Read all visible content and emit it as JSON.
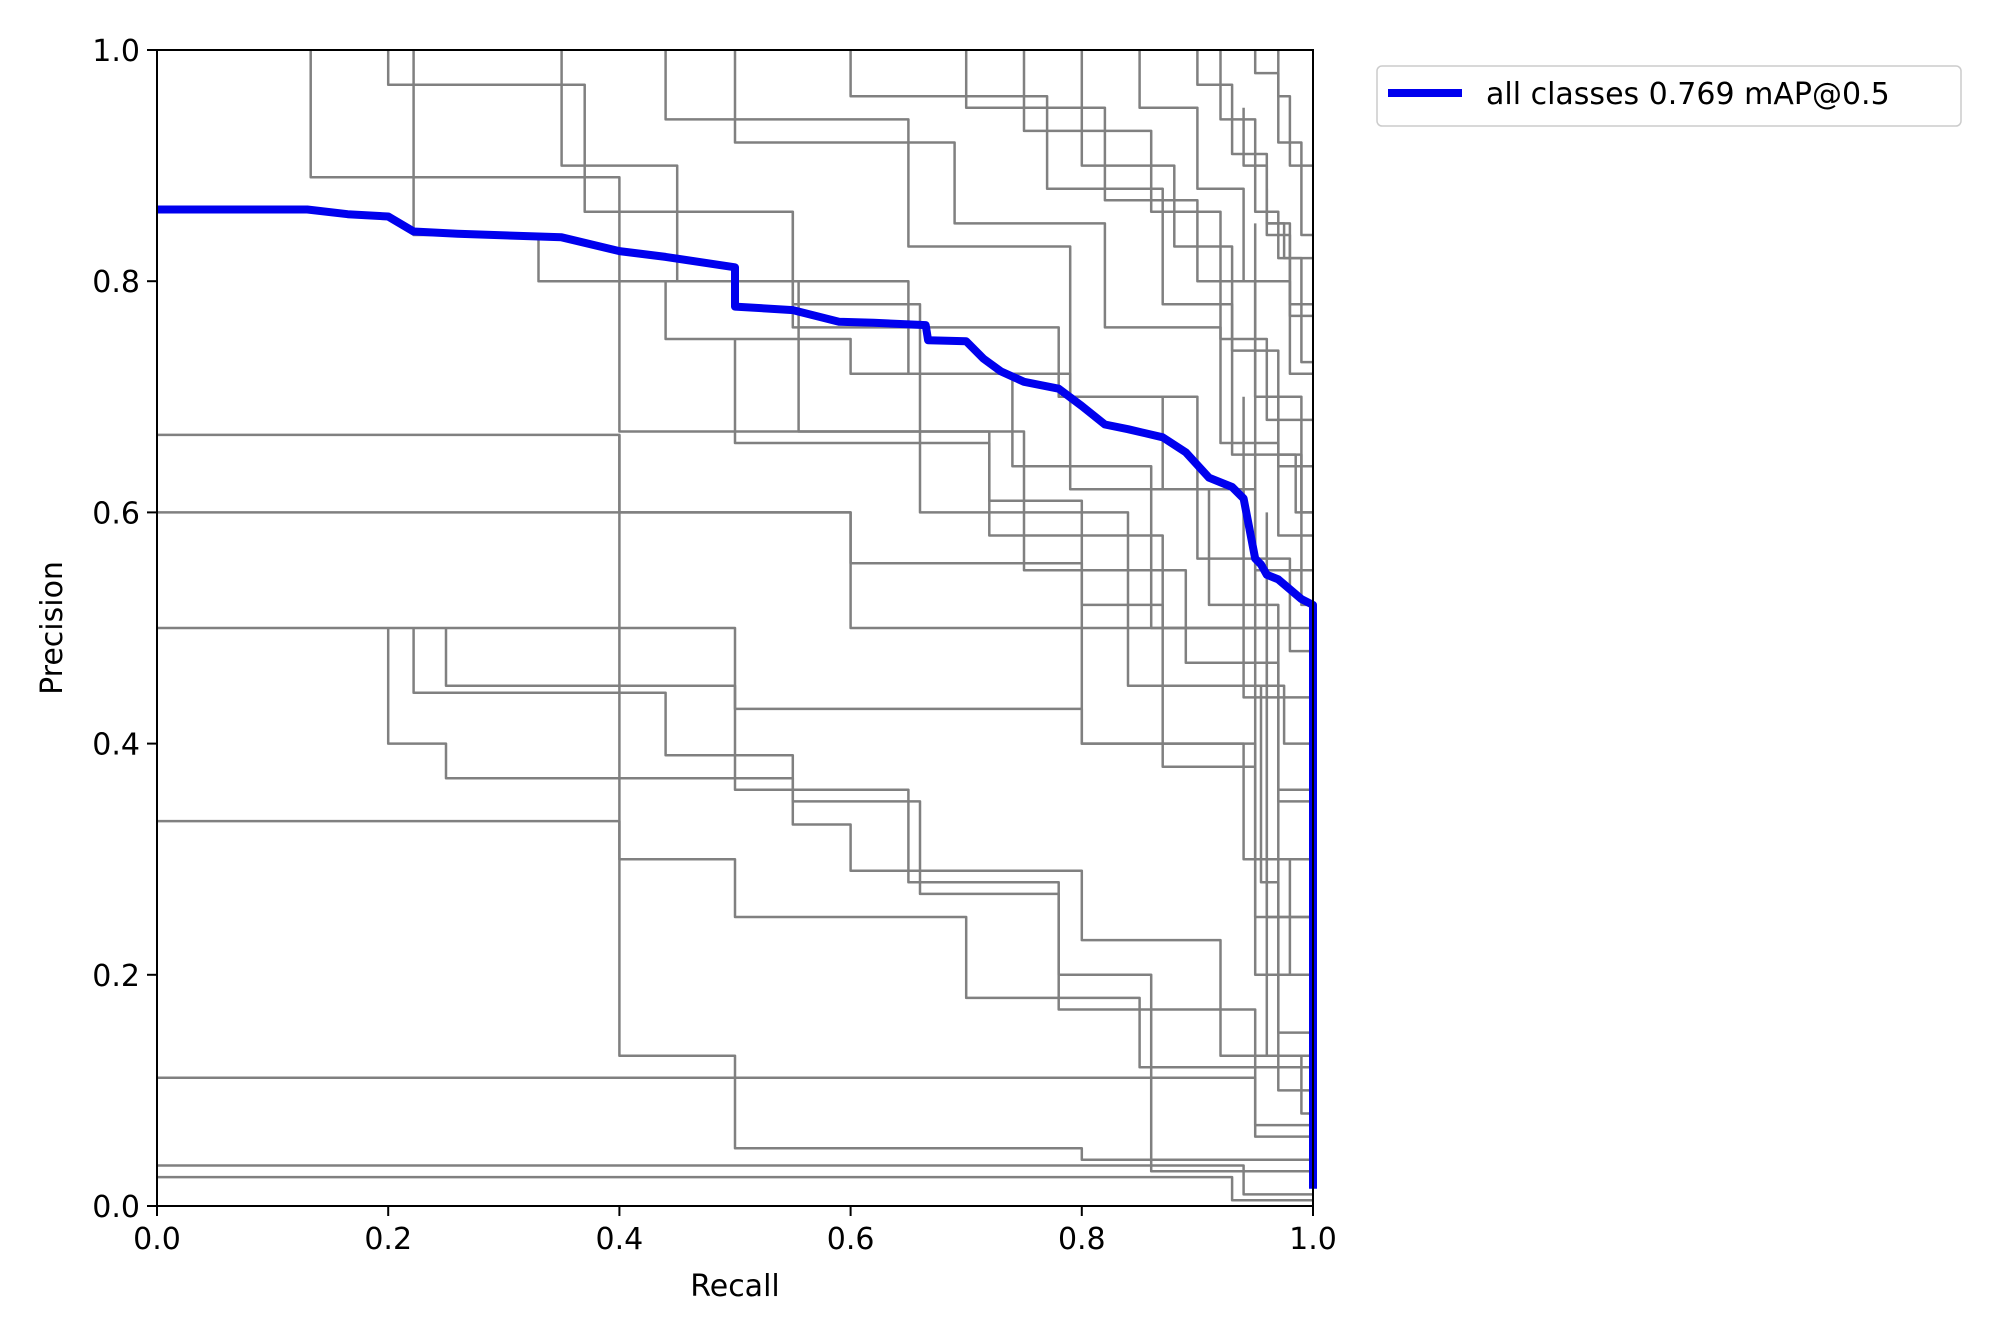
{
  "chart_data": {
    "type": "line",
    "xlabel": "Recall",
    "ylabel": "Precision",
    "xlim": [
      0,
      1
    ],
    "ylim": [
      0,
      1
    ],
    "xticks": [
      "0.0",
      "0.2",
      "0.4",
      "0.6",
      "0.8",
      "1.0"
    ],
    "yticks": [
      "0.0",
      "0.2",
      "0.4",
      "0.6",
      "0.8",
      "1.0"
    ],
    "grid": false,
    "legend_position": "outside-top-right",
    "colors": {
      "all_classes": "#0000ee",
      "per_class": "#808080"
    },
    "series": [
      {
        "name": "all classes 0.769 mAP@0.5",
        "highlight": true,
        "x": [
          0.0,
          0.13,
          0.165,
          0.2,
          0.222,
          0.26,
          0.35,
          0.4,
          0.44,
          0.5,
          0.5,
          0.55,
          0.59,
          0.62,
          0.665,
          0.667,
          0.7,
          0.715,
          0.73,
          0.75,
          0.78,
          0.8,
          0.82,
          0.84,
          0.87,
          0.89,
          0.91,
          0.93,
          0.94,
          0.95,
          0.955,
          0.96,
          0.97,
          0.99,
          1.0,
          1.0
        ],
        "y": [
          0.862,
          0.862,
          0.858,
          0.856,
          0.843,
          0.841,
          0.838,
          0.826,
          0.821,
          0.812,
          0.778,
          0.775,
          0.765,
          0.764,
          0.762,
          0.749,
          0.748,
          0.733,
          0.722,
          0.713,
          0.707,
          0.692,
          0.676,
          0.672,
          0.665,
          0.652,
          0.63,
          0.622,
          0.612,
          0.56,
          0.555,
          0.546,
          0.542,
          0.525,
          0.52,
          0.015
        ]
      },
      {
        "x": [
          0.133,
          0.133,
          0.4,
          0.4,
          0.75,
          0.75,
          0.89,
          0.89,
          0.97,
          0.97,
          1.0
        ],
        "y": [
          1.0,
          0.89,
          0.89,
          0.67,
          0.67,
          0.55,
          0.55,
          0.47,
          0.47,
          0.1,
          0.1
        ]
      },
      {
        "x": [
          0.0,
          0.4,
          0.4,
          0.6,
          0.6,
          0.8,
          0.8,
          0.95,
          0.95,
          1.0
        ],
        "y": [
          0.667,
          0.667,
          0.6,
          0.6,
          0.5,
          0.5,
          0.4,
          0.4,
          0.2,
          0.2
        ]
      },
      {
        "x": [
          0.0,
          0.6,
          0.6,
          0.8,
          0.8,
          1.0
        ],
        "y": [
          0.6,
          0.6,
          0.556,
          0.556,
          0.5,
          0.5
        ]
      },
      {
        "x": [
          0.0,
          0.5,
          0.5,
          0.8,
          0.8,
          0.94,
          0.94,
          1.0
        ],
        "y": [
          0.5,
          0.5,
          0.43,
          0.43,
          0.4,
          0.4,
          0.3,
          0.3
        ]
      },
      {
        "x": [
          0.2,
          0.2,
          0.25,
          0.25,
          0.55,
          0.55,
          0.6,
          0.6,
          0.8,
          0.8,
          0.92,
          0.92,
          1.0
        ],
        "y": [
          0.5,
          0.4,
          0.4,
          0.37,
          0.37,
          0.33,
          0.33,
          0.29,
          0.29,
          0.23,
          0.23,
          0.13,
          0.13
        ]
      },
      {
        "x": [
          0.222,
          0.222,
          0.44,
          0.44,
          0.55,
          0.55,
          0.66,
          0.66,
          0.78,
          0.78,
          0.95,
          0.95,
          1.0
        ],
        "y": [
          0.5,
          0.444,
          0.444,
          0.39,
          0.39,
          0.35,
          0.35,
          0.27,
          0.27,
          0.17,
          0.17,
          0.06,
          0.06
        ]
      },
      {
        "x": [
          0.25,
          0.25,
          0.5,
          0.5,
          0.65,
          0.65,
          0.78,
          0.78,
          0.86,
          0.86,
          1.0
        ],
        "y": [
          0.5,
          0.45,
          0.45,
          0.36,
          0.36,
          0.28,
          0.28,
          0.2,
          0.2,
          0.03,
          0.03
        ]
      },
      {
        "x": [
          0.0,
          0.4,
          0.4,
          0.5,
          0.5,
          0.7,
          0.7,
          0.85,
          0.85,
          1.0
        ],
        "y": [
          0.333,
          0.333,
          0.3,
          0.3,
          0.25,
          0.25,
          0.18,
          0.18,
          0.12,
          0.12
        ]
      },
      {
        "x": [
          0.0,
          0.95,
          0.95,
          1.0
        ],
        "y": [
          0.111,
          0.111,
          0.07,
          0.07
        ]
      },
      {
        "x": [
          0.0,
          0.94,
          0.94,
          1.0
        ],
        "y": [
          0.035,
          0.035,
          0.01,
          0.01
        ]
      },
      {
        "x": [
          0.0,
          0.93,
          0.93,
          1.0
        ],
        "y": [
          0.025,
          0.025,
          0.005,
          0.005
        ]
      },
      {
        "x": [
          0.4,
          0.4,
          0.5,
          0.5,
          0.67,
          0.67,
          0.8,
          0.8,
          1.0
        ],
        "y": [
          0.667,
          0.13,
          0.13,
          0.05,
          0.05,
          0.05,
          0.05,
          0.04,
          0.04
        ]
      },
      {
        "x": [
          0.222,
          0.222,
          0.33,
          0.33,
          0.555,
          0.555,
          0.72,
          0.72,
          0.87,
          0.87,
          0.97,
          0.97,
          1.0
        ],
        "y": [
          1.0,
          0.84,
          0.84,
          0.8,
          0.8,
          0.67,
          0.67,
          0.58,
          0.58,
          0.5,
          0.5,
          0.35,
          0.35
        ]
      },
      {
        "x": [
          0.35,
          0.35,
          0.45,
          0.45,
          0.65,
          0.65,
          0.79,
          0.79,
          0.91,
          0.91,
          0.97,
          0.97,
          1.0
        ],
        "y": [
          1.0,
          0.9,
          0.9,
          0.8,
          0.8,
          0.72,
          0.72,
          0.62,
          0.62,
          0.52,
          0.52,
          0.36,
          0.36
        ]
      },
      {
        "x": [
          0.2,
          0.2,
          0.37,
          0.37,
          0.55,
          0.55,
          0.66,
          0.66,
          0.84,
          0.84,
          0.96,
          0.96,
          1.0
        ],
        "y": [
          1.0,
          0.97,
          0.97,
          0.86,
          0.86,
          0.78,
          0.78,
          0.6,
          0.6,
          0.45,
          0.45,
          0.25,
          0.25
        ]
      },
      {
        "x": [
          0.44,
          0.44,
          0.65,
          0.65,
          0.79,
          0.79,
          0.9,
          0.9,
          0.98,
          0.98,
          1.0
        ],
        "y": [
          1.0,
          0.94,
          0.94,
          0.83,
          0.83,
          0.7,
          0.7,
          0.56,
          0.56,
          0.48,
          0.48
        ]
      },
      {
        "x": [
          0.6,
          0.6,
          0.77,
          0.77,
          0.87,
          0.87,
          0.93,
          0.93,
          0.99,
          0.99,
          1.0
        ],
        "y": [
          1.0,
          0.96,
          0.96,
          0.88,
          0.88,
          0.78,
          0.78,
          0.65,
          0.65,
          0.52,
          0.52
        ]
      },
      {
        "x": [
          0.5,
          0.5,
          0.69,
          0.69,
          0.82,
          0.82,
          0.92,
          0.92,
          0.97,
          0.97,
          1.0
        ],
        "y": [
          1.0,
          0.92,
          0.92,
          0.85,
          0.85,
          0.76,
          0.76,
          0.66,
          0.66,
          0.58,
          0.58
        ]
      },
      {
        "x": [
          0.7,
          0.7,
          0.82,
          0.82,
          0.9,
          0.9,
          0.95,
          0.95,
          0.99,
          0.99,
          1.0
        ],
        "y": [
          1.0,
          0.95,
          0.95,
          0.87,
          0.87,
          0.8,
          0.8,
          0.7,
          0.7,
          0.6,
          0.6
        ]
      },
      {
        "x": [
          0.75,
          0.75,
          0.86,
          0.86,
          0.92,
          0.92,
          0.96,
          0.96,
          1.0
        ],
        "y": [
          1.0,
          0.93,
          0.93,
          0.86,
          0.86,
          0.75,
          0.75,
          0.68,
          0.68
        ]
      },
      {
        "x": [
          0.8,
          0.8,
          0.88,
          0.88,
          0.93,
          0.93,
          0.97,
          0.97,
          1.0
        ],
        "y": [
          1.0,
          0.9,
          0.9,
          0.83,
          0.83,
          0.74,
          0.74,
          0.64,
          0.64
        ]
      },
      {
        "x": [
          0.85,
          0.85,
          0.9,
          0.9,
          0.94,
          0.94,
          0.98,
          0.98,
          1.0
        ],
        "y": [
          1.0,
          0.95,
          0.95,
          0.88,
          0.88,
          0.8,
          0.8,
          0.72,
          0.72
        ]
      },
      {
        "x": [
          0.9,
          0.9,
          0.93,
          0.93,
          0.96,
          0.96,
          0.98,
          0.98,
          1.0
        ],
        "y": [
          1.0,
          0.97,
          0.97,
          0.91,
          0.91,
          0.85,
          0.85,
          0.77,
          0.77
        ]
      },
      {
        "x": [
          0.92,
          0.92,
          0.95,
          0.95,
          0.97,
          0.97,
          0.99,
          0.99,
          1.0
        ],
        "y": [
          1.0,
          0.94,
          0.94,
          0.86,
          0.86,
          0.82,
          0.82,
          0.73,
          0.73
        ]
      },
      {
        "x": [
          0.95,
          0.95,
          0.97,
          0.97,
          0.99,
          0.99,
          1.0
        ],
        "y": [
          1.0,
          0.98,
          0.98,
          0.92,
          0.92,
          0.84,
          0.84
        ]
      },
      {
        "x": [
          0.97,
          0.97,
          0.98,
          0.98,
          1.0
        ],
        "y": [
          1.0,
          0.96,
          0.96,
          0.9,
          0.9
        ]
      },
      {
        "x": [
          0.94,
          0.94,
          0.96,
          0.96,
          0.975,
          0.975,
          1.0
        ],
        "y": [
          0.95,
          0.9,
          0.9,
          0.85,
          0.85,
          0.82,
          0.82
        ]
      },
      {
        "x": [
          0.96,
          0.96,
          0.98,
          0.98,
          1.0
        ],
        "y": [
          0.88,
          0.84,
          0.84,
          0.78,
          0.78
        ]
      },
      {
        "x": [
          0.95,
          0.95,
          0.97,
          0.97,
          0.985,
          0.985,
          1.0
        ],
        "y": [
          0.8,
          0.7,
          0.7,
          0.65,
          0.65,
          0.6,
          0.6
        ]
      },
      {
        "x": [
          0.96,
          0.96,
          0.975,
          0.975,
          1.0
        ],
        "y": [
          0.6,
          0.45,
          0.45,
          0.4,
          0.4
        ]
      },
      {
        "x": [
          0.955,
          0.955,
          0.97,
          0.97,
          1.0
        ],
        "y": [
          0.45,
          0.28,
          0.28,
          0.15,
          0.15
        ]
      },
      {
        "x": [
          0.95,
          0.95,
          0.96,
          0.96,
          0.99,
          0.99,
          1.0
        ],
        "y": [
          0.85,
          0.3,
          0.3,
          0.13,
          0.13,
          0.08,
          0.08
        ]
      },
      {
        "x": [
          0.94,
          0.94,
          0.96,
          0.96,
          0.98,
          0.98,
          1.0
        ],
        "y": [
          0.7,
          0.5,
          0.5,
          0.3,
          0.3,
          0.2,
          0.2
        ]
      },
      {
        "x": [
          0.55,
          0.55,
          0.78,
          0.78,
          0.87,
          0.87,
          0.95,
          0.95,
          1.0
        ],
        "y": [
          0.86,
          0.76,
          0.76,
          0.7,
          0.7,
          0.62,
          0.62,
          0.55,
          0.55
        ]
      },
      {
        "x": [
          0.44,
          0.44,
          0.6,
          0.6,
          0.74,
          0.74,
          0.86,
          0.86,
          0.94,
          0.94,
          1.0
        ],
        "y": [
          0.8,
          0.75,
          0.75,
          0.72,
          0.72,
          0.64,
          0.64,
          0.5,
          0.5,
          0.44,
          0.44
        ]
      },
      {
        "x": [
          0.5,
          0.5,
          0.72,
          0.72,
          0.8,
          0.8,
          0.87,
          0.87,
          0.95,
          0.95,
          1.0
        ],
        "y": [
          0.75,
          0.66,
          0.66,
          0.61,
          0.61,
          0.52,
          0.52,
          0.38,
          0.38,
          0.25,
          0.25
        ]
      }
    ],
    "legend": [
      "all classes 0.769 mAP@0.5"
    ]
  }
}
